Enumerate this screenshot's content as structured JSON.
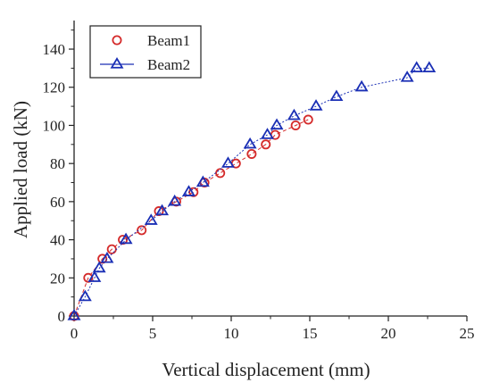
{
  "chart_data": {
    "type": "scatter",
    "xlabel": "Vertical displacement (mm)",
    "ylabel": "Applied load (kN)",
    "xlim": [
      0,
      25
    ],
    "ylim": [
      0,
      155
    ],
    "xticks": [
      0,
      5,
      10,
      15,
      20,
      25
    ],
    "yticks": [
      0,
      20,
      40,
      60,
      80,
      100,
      120,
      140
    ],
    "grid": false,
    "legend": "top-left",
    "series": [
      {
        "name": "Beam1",
        "marker": "circle",
        "color": "#d42a2a",
        "line": "dashed",
        "x": [
          0,
          0.9,
          1.8,
          2.4,
          3.1,
          4.3,
          5.4,
          6.5,
          7.6,
          8.3,
          9.3,
          10.3,
          11.3,
          12.2,
          12.8,
          14.1,
          14.9
        ],
        "y": [
          0,
          20,
          30,
          35,
          40,
          45,
          55,
          60,
          65,
          70,
          75,
          80,
          85,
          90,
          95,
          100,
          103
        ]
      },
      {
        "name": "Beam2",
        "marker": "triangle",
        "color": "#1a2fb5",
        "line": "dotted",
        "x": [
          0,
          0.7,
          1.3,
          1.6,
          2.1,
          3.3,
          4.9,
          5.6,
          6.4,
          7.3,
          8.2,
          9.8,
          11.2,
          12.3,
          12.9,
          14.0,
          15.4,
          16.7,
          18.3,
          21.2,
          21.8,
          22.6
        ],
        "y": [
          0,
          10,
          20,
          25,
          30,
          40,
          50,
          55,
          60,
          65,
          70,
          80,
          90,
          95,
          100,
          105,
          110,
          115,
          120,
          125,
          130,
          130
        ]
      }
    ]
  }
}
